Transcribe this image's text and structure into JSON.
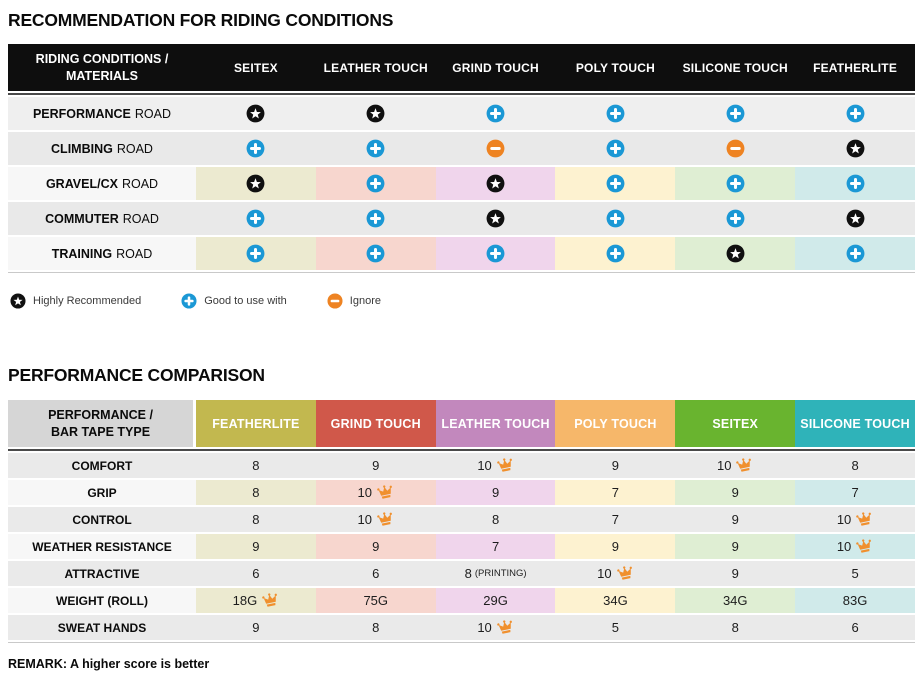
{
  "colors": {
    "blue": "#1b98d5",
    "orange": "#ee8322",
    "icon_black": "#101010",
    "crown": "#f0902e",
    "table1_header_bg": "#0e0e0e",
    "row_gray": "#e9e9e9",
    "row_gray_light": "#efefef",
    "row_gray_t2": "#eaeaea",
    "tinted_label_bg": "#f7f7f7",
    "t2_corner_bg": "#d6d6d6"
  },
  "column_tints": [
    "#ecead0",
    "#f7d6ce",
    "#f0d5ec",
    "#fdf2d0",
    "#dfeed3",
    "#d0eaea"
  ],
  "table1": {
    "title": "RECOMMENDATION FOR RIDING CONDITIONS",
    "corner_header": [
      "RIDING CONDITIONS /",
      "MATERIALS"
    ],
    "columns": [
      "SEITEX",
      "LEATHER TOUCH",
      "GRIND TOUCH",
      "POLY TOUCH",
      "SILICONE TOUCH",
      "FEATHERLITE"
    ],
    "rows": [
      {
        "label_strong": "PERFORMANCE",
        "label_rest": "ROAD",
        "style": "gray-light",
        "cells": [
          "star",
          "star",
          "plus",
          "plus",
          "plus",
          "plus"
        ]
      },
      {
        "label_strong": "CLIMBING",
        "label_rest": "ROAD",
        "style": "gray",
        "cells": [
          "plus",
          "plus",
          "minus",
          "plus",
          "minus",
          "star"
        ]
      },
      {
        "label_strong": "GRAVEL/CX",
        "label_rest": "ROAD",
        "style": "tinted",
        "cells": [
          "star",
          "plus",
          "star",
          "plus",
          "plus",
          "plus"
        ]
      },
      {
        "label_strong": "COMMUTER",
        "label_rest": "ROAD",
        "style": "gray",
        "cells": [
          "plus",
          "plus",
          "star",
          "plus",
          "plus",
          "star"
        ]
      },
      {
        "label_strong": "TRAINING",
        "label_rest": "ROAD",
        "style": "tinted",
        "cells": [
          "plus",
          "plus",
          "plus",
          "plus",
          "star",
          "plus"
        ]
      }
    ],
    "legend": [
      {
        "icon": "star",
        "label": "Highly Recommended"
      },
      {
        "icon": "plus",
        "label": "Good to use with"
      },
      {
        "icon": "minus",
        "label": "Ignore"
      }
    ]
  },
  "table2": {
    "title": "PERFORMANCE COMPARISON",
    "corner_header": [
      "PERFORMANCE /",
      "BAR TAPE TYPE"
    ],
    "columns": [
      {
        "label": "FEATHERLITE",
        "color": "#c2b84f"
      },
      {
        "label": "GRIND TOUCH",
        "color": "#d0584a"
      },
      {
        "label": "LEATHER TOUCH",
        "color": "#c288bd"
      },
      {
        "label": "POLY TOUCH",
        "color": "#f6b76a"
      },
      {
        "label": "SEITEX",
        "color": "#69b42f"
      },
      {
        "label": "SILICONE TOUCH",
        "color": "#2fb3b9"
      }
    ],
    "rows": [
      {
        "label": "COMFORT",
        "style": "gray",
        "cells": [
          {
            "text": "8"
          },
          {
            "text": "9"
          },
          {
            "text": "10",
            "crown": true
          },
          {
            "text": "9"
          },
          {
            "text": "10",
            "crown": true
          },
          {
            "text": "8"
          }
        ]
      },
      {
        "label": "GRIP",
        "style": "tinted",
        "cells": [
          {
            "text": "8"
          },
          {
            "text": "10",
            "crown": true
          },
          {
            "text": "9"
          },
          {
            "text": "7"
          },
          {
            "text": "9"
          },
          {
            "text": "7"
          }
        ]
      },
      {
        "label": "CONTROL",
        "style": "gray",
        "cells": [
          {
            "text": "8"
          },
          {
            "text": "10",
            "crown": true
          },
          {
            "text": "8"
          },
          {
            "text": "7"
          },
          {
            "text": "9"
          },
          {
            "text": "10",
            "crown": true
          }
        ]
      },
      {
        "label": "WEATHER RESISTANCE",
        "style": "tinted",
        "cells": [
          {
            "text": "9"
          },
          {
            "text": "9"
          },
          {
            "text": "7"
          },
          {
            "text": "9"
          },
          {
            "text": "9"
          },
          {
            "text": "10",
            "crown": true
          }
        ]
      },
      {
        "label": "ATTRACTIVE",
        "style": "gray",
        "cells": [
          {
            "text": "6"
          },
          {
            "text": "6"
          },
          {
            "text": "8",
            "note": "(PRINTING)"
          },
          {
            "text": "10",
            "crown": true
          },
          {
            "text": "9"
          },
          {
            "text": "5"
          }
        ]
      },
      {
        "label": "WEIGHT (ROLL)",
        "style": "tinted",
        "cells": [
          {
            "text": "18G",
            "crown": true
          },
          {
            "text": "75G"
          },
          {
            "text": "29G"
          },
          {
            "text": "34G"
          },
          {
            "text": "34G"
          },
          {
            "text": "83G"
          }
        ]
      },
      {
        "label": "SWEAT HANDS",
        "style": "gray",
        "cells": [
          {
            "text": "9"
          },
          {
            "text": "8"
          },
          {
            "text": "10",
            "crown": true
          },
          {
            "text": "5"
          },
          {
            "text": "8"
          },
          {
            "text": "6"
          }
        ]
      }
    ],
    "remark": "REMARK: A higher score is better"
  },
  "chart_data": [
    {
      "type": "table",
      "title": "RECOMMENDATION FOR RIDING CONDITIONS",
      "columns": [
        "SEITEX",
        "LEATHER TOUCH",
        "GRIND TOUCH",
        "POLY TOUCH",
        "SILICONE TOUCH",
        "FEATHERLITE"
      ],
      "rows": [
        "PERFORMANCE ROAD",
        "CLIMBING ROAD",
        "GRAVEL/CX ROAD",
        "COMMUTER ROAD",
        "TRAINING ROAD"
      ],
      "values": [
        [
          "highly-recommended",
          "highly-recommended",
          "good",
          "good",
          "good",
          "good"
        ],
        [
          "good",
          "good",
          "ignore",
          "good",
          "ignore",
          "highly-recommended"
        ],
        [
          "highly-recommended",
          "good",
          "highly-recommended",
          "good",
          "good",
          "good"
        ],
        [
          "good",
          "good",
          "highly-recommended",
          "good",
          "good",
          "highly-recommended"
        ],
        [
          "good",
          "good",
          "good",
          "good",
          "highly-recommended",
          "good"
        ]
      ],
      "legend": [
        "Highly Recommended",
        "Good to use with",
        "Ignore"
      ]
    },
    {
      "type": "table",
      "title": "PERFORMANCE COMPARISON",
      "columns": [
        "FEATHERLITE",
        "GRIND TOUCH",
        "LEATHER TOUCH",
        "POLY TOUCH",
        "SEITEX",
        "SILICONE TOUCH"
      ],
      "rows": [
        "COMFORT",
        "GRIP",
        "CONTROL",
        "WEATHER RESISTANCE",
        "ATTRACTIVE",
        "WEIGHT (ROLL)",
        "SWEAT HANDS"
      ],
      "values": [
        [
          "8",
          "9",
          "10*",
          "9",
          "10*",
          "8"
        ],
        [
          "8",
          "10*",
          "9",
          "7",
          "9",
          "7"
        ],
        [
          "8",
          "10*",
          "8",
          "7",
          "9",
          "10*"
        ],
        [
          "9",
          "9",
          "7",
          "9",
          "9",
          "10*"
        ],
        [
          "6",
          "6",
          "8 (PRINTING)",
          "10*",
          "9",
          "5"
        ],
        [
          "18G*",
          "75G",
          "29G",
          "34G",
          "34G",
          "83G"
        ],
        [
          "9",
          "8",
          "10*",
          "5",
          "8",
          "6"
        ]
      ],
      "note": "* = best in row (crown); REMARK: A higher score is better"
    }
  ]
}
